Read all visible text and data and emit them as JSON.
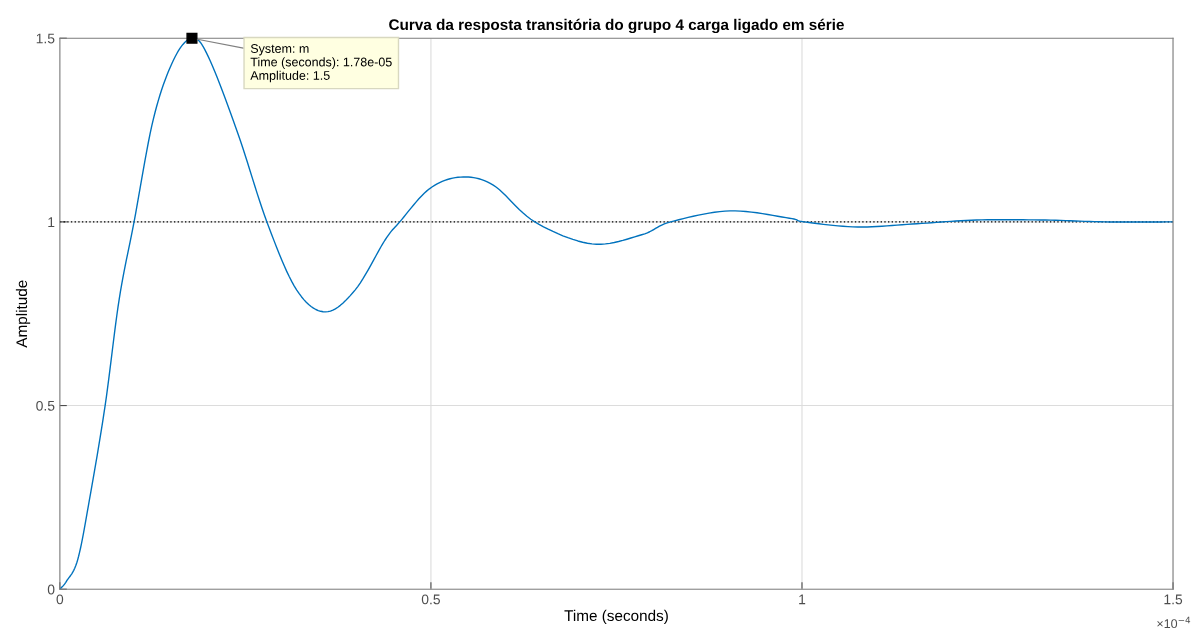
{
  "chart_data": {
    "type": "line",
    "title": "Curva da resposta transitória do grupo 4 carga ligado em série",
    "xlabel": "Time (seconds)",
    "ylabel": "Amplitude",
    "x": [
      0,
      0.009,
      0.024,
      0.04,
      0.061,
      0.08,
      0.1,
      0.126,
      0.153,
      0.178,
      0.2,
      0.24,
      0.279,
      0.319,
      0.358,
      0.398,
      0.438,
      0.458,
      0.498,
      0.54,
      0.584,
      0.64,
      0.717,
      0.784,
      0.823,
      0.903,
      0.983,
      1.003,
      1.075,
      1.155,
      1.235,
      1.328,
      1.408,
      1.5
    ],
    "series": [
      {
        "color": "#0072bd",
        "values": [
          0,
          0.022,
          0.08,
          0.245,
          0.5,
          0.79,
          1.0,
          1.28,
          1.44,
          1.5,
          1.45,
          1.24,
          1.0,
          0.815,
          0.755,
          0.815,
          0.95,
          1.0,
          1.09,
          1.122,
          1.1,
          1.0,
          0.94,
          0.965,
          1.0,
          1.03,
          1.01,
          1.0,
          0.986,
          0.995,
          1.005,
          1.005,
          1.0,
          1.0
        ]
      }
    ],
    "xlim": [
      0,
      1.5
    ],
    "ylim": [
      0,
      1.5
    ],
    "xticks": [
      0,
      0.5,
      1,
      1.5
    ],
    "yticks": [
      0,
      0.5,
      1,
      1.5
    ],
    "ref_lines": [
      {
        "axis": "y",
        "value": 1,
        "color": "#000000",
        "line_style": "dotted"
      }
    ],
    "annotations": [
      {
        "text": "System: m\nTime (seconds): 1.78e-05\nAmplitude: 1.5",
        "x": 0.178,
        "y": 1.5
      },
      "×10$^{−4}$"
    ],
    "grid": true,
    "marker": "none",
    "line_style": "solid"
  }
}
